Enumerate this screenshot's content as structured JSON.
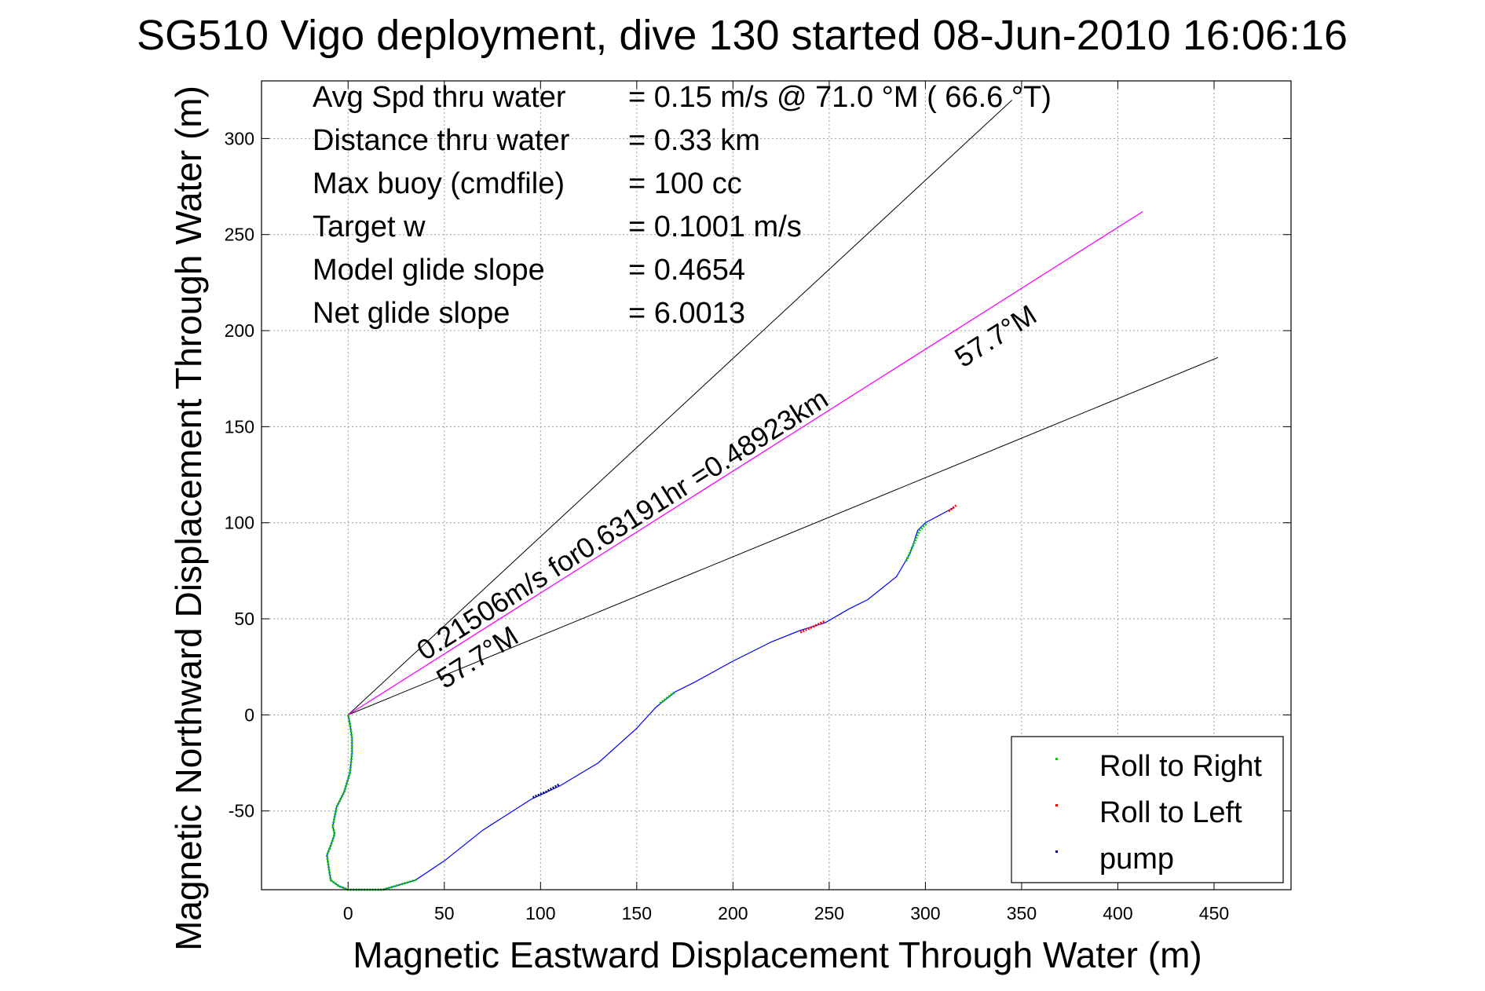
{
  "chart_data": {
    "type": "line",
    "title": "SG510 Vigo deployment, dive 130 started 08-Jun-2010 16:06:16",
    "xlabel": "Magnetic Eastward Displacement Through Water (m)",
    "ylabel": "Magnetic Northward Displacement Through Water (m)",
    "xlim": [
      -45,
      490
    ],
    "ylim": [
      -91,
      330
    ],
    "xticks": [
      0,
      50,
      100,
      150,
      200,
      250,
      300,
      350,
      400,
      450
    ],
    "yticks": [
      -50,
      0,
      50,
      100,
      150,
      200,
      250,
      300
    ],
    "grid": true,
    "legend_position": "bottom-right",
    "stats": [
      {
        "label": "Avg Spd thru water",
        "value": "=  0.15 m/s @  71.0 °M ( 66.6 °T)"
      },
      {
        "label": "Distance thru water",
        "value": "=  0.33 km"
      },
      {
        "label": "Max buoy (cmdfile)",
        "value": "= 100 cc"
      },
      {
        "label": "Target w",
        "value": "= 0.1001 m/s"
      },
      {
        "label": "Model glide slope",
        "value": "= 0.4654"
      },
      {
        "label": "Net glide slope",
        "value": "= 6.0013"
      }
    ],
    "annotations": {
      "current": "0.21506m/s for0.63191hr =0.48923km",
      "heading_upper": "57.7°M",
      "heading_lower": "57.7°M"
    },
    "lines": {
      "upper": {
        "x": [
          0,
          345
        ],
        "y": [
          0,
          320
        ]
      },
      "current": {
        "x": [
          0,
          413
        ],
        "y": [
          0,
          262
        ]
      },
      "lower": {
        "x": [
          0,
          452
        ],
        "y": [
          0,
          186
        ]
      }
    },
    "track": {
      "x": [
        0,
        1,
        2,
        2,
        1,
        -2,
        -6,
        -8,
        -7,
        -8,
        -9,
        -11,
        -10,
        -9,
        -5,
        0,
        8,
        18,
        25,
        35,
        50,
        70,
        95,
        110,
        130,
        150,
        160,
        170,
        180,
        200,
        220,
        235,
        248,
        260,
        270,
        285,
        292,
        296,
        300,
        315
      ],
      "y": [
        0,
        -5,
        -12,
        -20,
        -30,
        -40,
        -48,
        -58,
        -62,
        -65,
        -68,
        -73,
        -80,
        -86,
        -89,
        -91,
        -91,
        -91,
        -89,
        -86,
        -76,
        -60,
        -44,
        -37,
        -25,
        -7,
        4,
        12,
        17,
        28,
        38,
        44,
        48,
        55,
        60,
        72,
        84,
        96,
        100,
        108
      ]
    },
    "series": [
      {
        "name": "Roll to Right",
        "color": "#00cc00",
        "segments": [
          {
            "x": [
              0,
              1,
              2,
              2,
              1,
              -2,
              -6,
              -8,
              -7,
              -8,
              -9,
              -11,
              -10,
              -9,
              -5,
              0,
              8,
              18,
              25,
              35
            ],
            "y": [
              0,
              -5,
              -12,
              -20,
              -30,
              -40,
              -48,
              -58,
              -62,
              -65,
              -68,
              -73,
              -80,
              -86,
              -89,
              -91,
              -91,
              -91,
              -89,
              -86
            ]
          },
          {
            "x": [
              162,
              166,
              170
            ],
            "y": [
              6,
              9,
              12
            ]
          },
          {
            "x": [
              290,
              294,
              297,
              301
            ],
            "y": [
              80,
              89,
              96,
              100
            ]
          }
        ]
      },
      {
        "name": "Roll to Left",
        "color": "#ff0000",
        "segments": [
          {
            "x": [
              235,
              242,
              248
            ],
            "y": [
              43,
              46,
              49
            ]
          },
          {
            "x": [
              312,
              316
            ],
            "y": [
              106,
              109
            ]
          }
        ]
      },
      {
        "name": "pump",
        "color": "#000080",
        "segments": [
          {
            "x": [
              96,
              103,
              110
            ],
            "y": [
              -43,
              -40,
              -36
            ]
          }
        ]
      }
    ]
  }
}
